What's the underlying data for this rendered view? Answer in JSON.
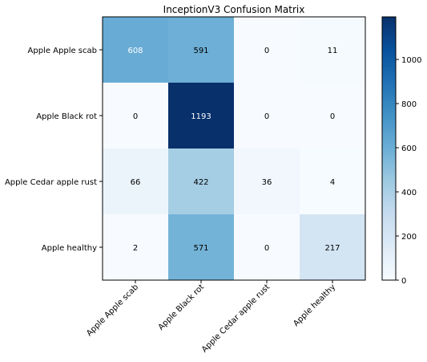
{
  "chart_data": {
    "type": "heatmap",
    "title": "InceptionV3 Confusion Matrix",
    "xlabel": "",
    "ylabel": "",
    "row_labels": [
      "Apple Apple scab",
      "Apple Black rot",
      "Apple Cedar apple rust",
      "Apple healthy"
    ],
    "col_labels": [
      "Apple Apple scab",
      "Apple Black rot",
      "Apple Cedar apple rust",
      "Apple healthy"
    ],
    "values": [
      [
        608,
        591,
        0,
        11
      ],
      [
        0,
        1193,
        0,
        0
      ],
      [
        66,
        422,
        36,
        4
      ],
      [
        2,
        571,
        0,
        217
      ]
    ],
    "colormap": "Blues",
    "colorbar": {
      "range": [
        0,
        1193
      ],
      "ticks": [
        0,
        200,
        400,
        600,
        800,
        1000
      ],
      "tick_labels": [
        "0",
        "200",
        "400",
        "600",
        "800",
        "1000"
      ]
    }
  }
}
